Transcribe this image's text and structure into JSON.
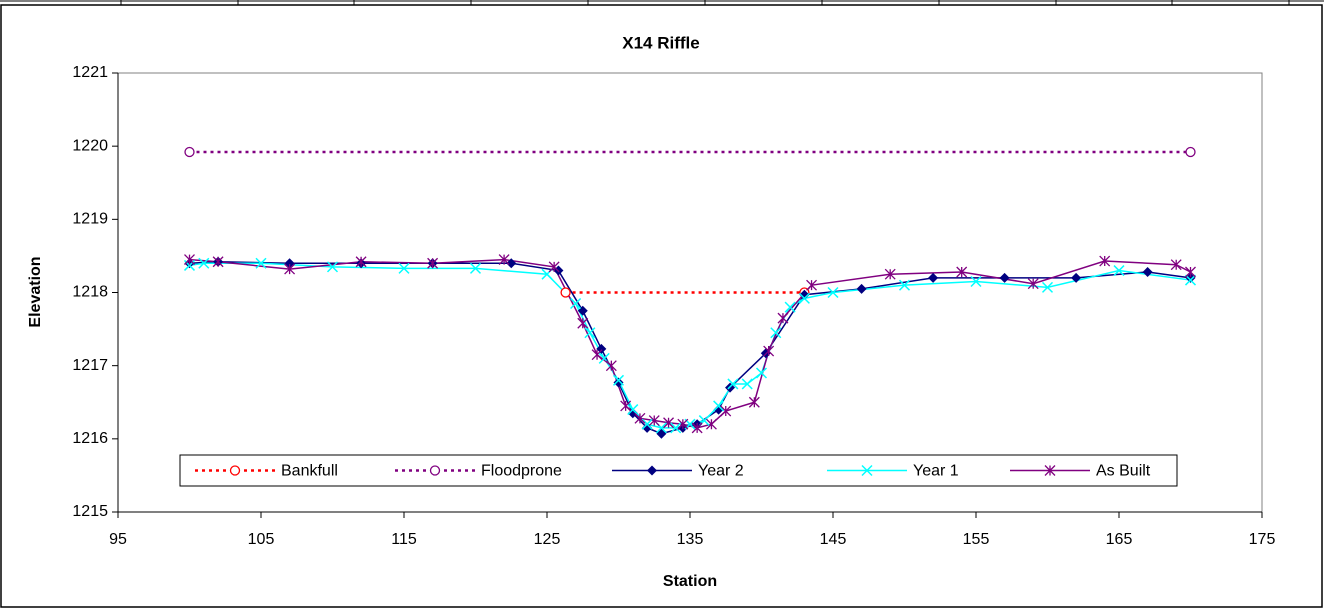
{
  "chart_data": {
    "type": "line",
    "title": "X14 Riffle",
    "x_label": "Station",
    "y_label": "Elevation",
    "xlim": [
      95,
      175
    ],
    "xticks": [
      95,
      105,
      115,
      125,
      135,
      145,
      155,
      165,
      175
    ],
    "ylim": [
      1215,
      1221
    ],
    "yticks": [
      1215,
      1216,
      1217,
      1218,
      1219,
      1220,
      1221
    ],
    "grid": false,
    "legend": "bottom",
    "series": [
      {
        "name": "Bankfull",
        "color": "#ff0000",
        "line_style": "dotted",
        "marker": "circle-open",
        "x": [
          126.3,
          143
        ],
        "values": [
          1218.0,
          1218.0
        ]
      },
      {
        "name": "Floodprone",
        "color": "#800080",
        "line_style": "dotted",
        "marker": "circle-open",
        "x": [
          100,
          170
        ],
        "values": [
          1219.92,
          1219.92
        ]
      },
      {
        "name": "Year 2",
        "color": "#000080",
        "line_style": "solid",
        "marker": "diamond",
        "x": [
          100,
          102,
          107,
          112,
          117,
          122.5,
          125.8,
          127.5,
          128.8,
          130,
          131,
          132,
          133,
          134.5,
          135.5,
          137,
          137.8,
          140.3,
          143,
          147,
          152,
          157,
          162,
          167,
          170
        ],
        "values": [
          1218.4,
          1218.42,
          1218.4,
          1218.4,
          1218.4,
          1218.4,
          1218.3,
          1217.75,
          1217.23,
          1216.77,
          1216.35,
          1216.15,
          1216.07,
          1216.15,
          1216.2,
          1216.4,
          1216.7,
          1217.17,
          1217.97,
          1218.05,
          1218.2,
          1218.2,
          1218.2,
          1218.28,
          1218.2
        ]
      },
      {
        "name": "Year 1",
        "color": "#00ffff",
        "line_style": "solid",
        "marker": "x",
        "x": [
          100,
          101,
          105,
          110,
          115,
          120,
          125,
          127,
          128,
          129,
          130,
          131,
          132,
          133,
          134,
          135,
          136,
          137,
          138,
          139,
          140,
          141,
          142,
          143,
          145,
          150,
          155,
          160,
          165,
          170
        ],
        "values": [
          1218.37,
          1218.4,
          1218.4,
          1218.35,
          1218.33,
          1218.33,
          1218.25,
          1217.85,
          1217.45,
          1217.1,
          1216.8,
          1216.4,
          1216.2,
          1216.15,
          1216.15,
          1216.2,
          1216.25,
          1216.45,
          1216.75,
          1216.75,
          1216.9,
          1217.45,
          1217.8,
          1217.92,
          1218.0,
          1218.1,
          1218.15,
          1218.07,
          1218.3,
          1218.17
        ]
      },
      {
        "name": "As Built",
        "color": "#800080",
        "line_style": "solid",
        "marker": "asterisk",
        "x": [
          100,
          102,
          107,
          112,
          117,
          122,
          125.5,
          127.5,
          128.5,
          129.5,
          130.5,
          131.5,
          132.5,
          133.5,
          134.5,
          135.5,
          136.5,
          137.5,
          139.5,
          140.5,
          141.5,
          143.5,
          149,
          154,
          159,
          164,
          169,
          170
        ],
        "values": [
          1218.45,
          1218.42,
          1218.32,
          1218.42,
          1218.4,
          1218.45,
          1218.35,
          1217.58,
          1217.15,
          1217.0,
          1216.45,
          1216.28,
          1216.25,
          1216.22,
          1216.2,
          1216.15,
          1216.2,
          1216.38,
          1216.5,
          1217.2,
          1217.65,
          1218.1,
          1218.25,
          1218.28,
          1218.12,
          1218.43,
          1218.38,
          1218.28
        ]
      }
    ]
  }
}
